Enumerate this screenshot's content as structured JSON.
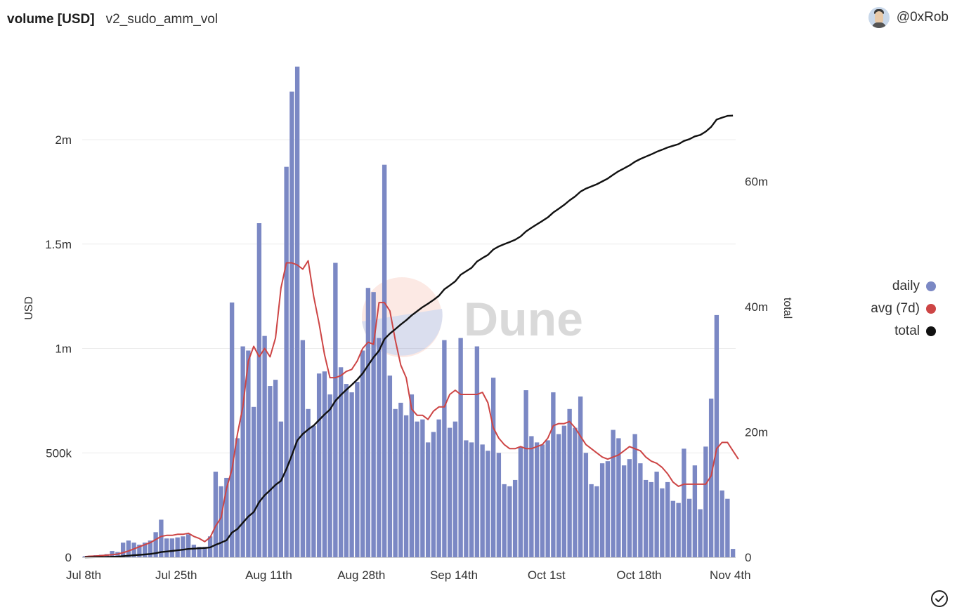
{
  "header": {
    "title": "volume [USD]",
    "query_name": "v2_sudo_amm_vol",
    "user": "@0xRob"
  },
  "watermark": "Dune",
  "colors": {
    "daily": "#7b88c4",
    "avg": "#cd4545",
    "total": "#111111",
    "grid": "#ececec"
  },
  "chart_data": {
    "type": "bar",
    "x_tick_labels": [
      "Jul 8th",
      "Jul 25th",
      "Aug 11th",
      "Aug 28th",
      "Sep 14th",
      "Oct 1st",
      "Oct 18th",
      "Nov 4th"
    ],
    "x_tick_day_index": [
      0,
      17,
      34,
      51,
      68,
      85,
      102,
      119
    ],
    "ylabel": "USD",
    "y2label": "total",
    "ylim": [
      0,
      2400000
    ],
    "y_ticks": [
      0,
      500000,
      1000000,
      1500000,
      2000000
    ],
    "y_tick_labels": [
      "0",
      "500k",
      "1m",
      "1.5m",
      "2m"
    ],
    "y2lim": [
      0,
      80000000
    ],
    "y2_ticks": [
      0,
      20000000,
      40000000,
      60000000
    ],
    "y2_tick_labels": [
      "0",
      "20m",
      "40m",
      "60m"
    ],
    "legend_position": "right",
    "grid": true,
    "series": [
      {
        "name": "daily",
        "type": "bar",
        "axis": "left",
        "values": [
          5000,
          8000,
          10000,
          12000,
          15000,
          30000,
          25000,
          70000,
          80000,
          70000,
          60000,
          70000,
          80000,
          120000,
          180000,
          90000,
          90000,
          95000,
          100000,
          110000,
          60000,
          50000,
          50000,
          100000,
          410000,
          340000,
          380000,
          1220000,
          570000,
          1010000,
          990000,
          720000,
          1600000,
          1060000,
          820000,
          850000,
          650000,
          1870000,
          2230000,
          2350000,
          1040000,
          710000,
          630000,
          880000,
          890000,
          780000,
          1410000,
          910000,
          830000,
          790000,
          840000,
          990000,
          1290000,
          1270000,
          1050000,
          1880000,
          870000,
          710000,
          740000,
          680000,
          780000,
          650000,
          660000,
          550000,
          600000,
          660000,
          1040000,
          620000,
          650000,
          1050000,
          560000,
          550000,
          1010000,
          540000,
          510000,
          860000,
          500000,
          350000,
          340000,
          370000,
          530000,
          800000,
          580000,
          550000,
          540000,
          560000,
          790000,
          590000,
          630000,
          710000,
          620000,
          770000,
          500000,
          350000,
          340000,
          450000,
          460000,
          610000,
          570000,
          440000,
          470000,
          590000,
          450000,
          370000,
          360000,
          410000,
          330000,
          360000,
          270000,
          260000,
          520000,
          280000,
          440000,
          230000,
          530000,
          760000,
          1160000,
          320000,
          280000,
          40000
        ]
      },
      {
        "name": "avg (7d)",
        "type": "line",
        "axis": "left",
        "values": [
          3000,
          5000,
          6000,
          8000,
          10000,
          12000,
          15000,
          22000,
          30000,
          40000,
          50000,
          60000,
          70000,
          85000,
          100000,
          105000,
          105000,
          110000,
          110000,
          115000,
          100000,
          90000,
          75000,
          95000,
          150000,
          190000,
          330000,
          420000,
          590000,
          720000,
          940000,
          1010000,
          960000,
          1000000,
          960000,
          1050000,
          1290000,
          1410000,
          1410000,
          1400000,
          1380000,
          1420000,
          1250000,
          1120000,
          970000,
          860000,
          860000,
          870000,
          890000,
          900000,
          940000,
          1000000,
          1030000,
          1020000,
          1220000,
          1220000,
          1180000,
          1040000,
          920000,
          860000,
          710000,
          680000,
          680000,
          660000,
          700000,
          720000,
          720000,
          780000,
          800000,
          780000,
          780000,
          780000,
          780000,
          790000,
          740000,
          620000,
          570000,
          540000,
          520000,
          520000,
          530000,
          520000,
          520000,
          530000,
          540000,
          570000,
          630000,
          640000,
          640000,
          650000,
          620000,
          580000,
          540000,
          520000,
          500000,
          480000,
          470000,
          480000,
          490000,
          510000,
          530000,
          520000,
          510000,
          480000,
          460000,
          450000,
          430000,
          400000,
          360000,
          340000,
          350000,
          350000,
          350000,
          350000,
          350000,
          390000,
          520000,
          550000,
          550000,
          510000,
          470000
        ]
      },
      {
        "name": "total",
        "type": "line",
        "axis": "right",
        "values": [
          0,
          10000,
          20000,
          30000,
          50000,
          80000,
          100000,
          170000,
          250000,
          320000,
          380000,
          450000,
          530000,
          650000,
          830000,
          920000,
          1010000,
          1110000,
          1210000,
          1320000,
          1380000,
          1430000,
          1480000,
          1580000,
          1990000,
          2330000,
          2710000,
          3930000,
          4500000,
          5510000,
          6500000,
          7220000,
          8820000,
          9880000,
          10700000,
          11550000,
          12200000,
          14070000,
          16300000,
          18650000,
          19690000,
          20400000,
          21030000,
          21910000,
          22800000,
          23580000,
          24990000,
          25900000,
          26730000,
          27520000,
          28360000,
          29350000,
          30640000,
          31910000,
          32960000,
          34840000,
          35710000,
          36420000,
          37160000,
          37840000,
          38620000,
          39270000,
          39930000,
          40480000,
          41080000,
          41740000,
          42780000,
          43400000,
          44050000,
          45100000,
          45660000,
          46210000,
          47220000,
          47760000,
          48270000,
          49130000,
          49630000,
          49980000,
          50320000,
          50690000,
          51220000,
          52020000,
          52600000,
          53150000,
          53690000,
          54250000,
          55040000,
          55630000,
          56260000,
          56970000,
          57590000,
          58360000,
          58860000,
          59210000,
          59550000,
          60000000,
          60460000,
          61070000,
          61640000,
          62080000,
          62550000,
          63140000,
          63590000,
          63960000,
          64320000,
          64730000,
          65060000,
          65420000,
          65690000,
          65950000,
          66470000,
          66750000,
          67190000,
          67420000,
          67950000,
          68710000,
          69870000,
          70190000,
          70470000,
          70510000
        ]
      }
    ]
  }
}
